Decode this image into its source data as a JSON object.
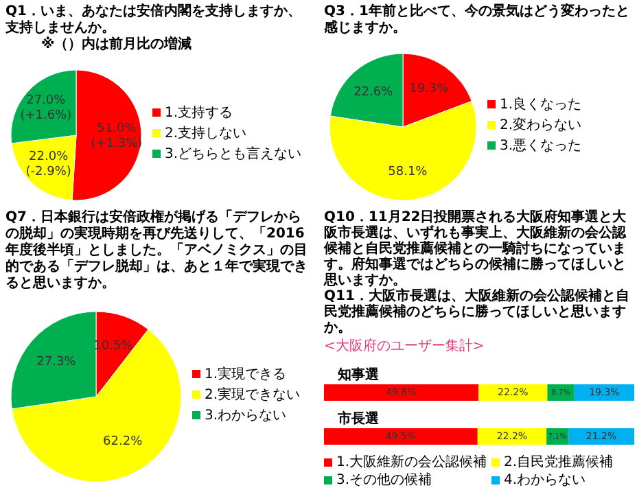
{
  "chart_data": [
    {
      "type": "pie",
      "title": "Q1．いま、あなたは安倍内閣を支持しますか、支持しませんか。",
      "subtitle": "※（）内は前月比の増減",
      "categories": [
        "1.支持する",
        "2.支持しない",
        "3.どちらとも言えない"
      ],
      "values": [
        51.0,
        22.0,
        27.0
      ],
      "colors": [
        "#ff0000",
        "#ffff00",
        "#00b050"
      ],
      "value_labels": [
        "51.0%\n(+1.3%)",
        "22.0%\n(-2.9%)",
        "27.0%\n(+1.6%)"
      ],
      "legend": "right"
    },
    {
      "type": "pie",
      "title": "Q3．1年前と比べて、今の景気はどう変わったと感じますか。",
      "categories": [
        "1.良くなった",
        "2.変わらない",
        "3.悪くなった"
      ],
      "values": [
        19.3,
        58.1,
        22.6
      ],
      "colors": [
        "#ff0000",
        "#ffff00",
        "#00b050"
      ],
      "value_labels": [
        "19.3%",
        "58.1%",
        "22.6%"
      ],
      "legend": "right"
    },
    {
      "type": "pie",
      "title": "Q7．日本銀行は安倍政権が掲げる「デフレからの脱却」の実現時期を再び先送りして、「2016年度後半頃」としました。「アベノミクス」の目的である「デフレ脱却」は、あと１年で実現できると思いますか。",
      "categories": [
        "1.実現できる",
        "2.実現できない",
        "3.わからない"
      ],
      "values": [
        10.5,
        62.2,
        27.3
      ],
      "colors": [
        "#ff0000",
        "#ffff00",
        "#00b050"
      ],
      "value_labels": [
        "10.5%",
        "62.2%",
        "27.3%"
      ],
      "legend": "right"
    },
    {
      "type": "bar",
      "orientation": "horizontal",
      "stacked": true,
      "title": "Q10．11月22日投開票される大阪府知事選と大阪市長選は、いずれも事実上、大阪維新の会公認候補と自民党推薦候補との一騎討ちになっています。府知事選ではどちらの候補に勝ってほしいと思いますか。",
      "subtitle": "Q11．大阪市長選は、大阪維新の会公認候補と自民党推薦候補のどちらに勝ってほしいと思いますか。",
      "annotations": [
        "<大阪府のユーザー集計>"
      ],
      "categories": [
        "知事選",
        "市長選"
      ],
      "legend": "bottom",
      "series": [
        {
          "name": "1.大阪維新の会公認候補",
          "color": "#ff0000",
          "values": [
            49.8,
            49.5
          ],
          "value_labels": [
            "49.8%",
            "49.5%"
          ]
        },
        {
          "name": "2.自民党推薦候補",
          "color": "#ffff00",
          "values": [
            22.2,
            22.2
          ],
          "value_labels": [
            "22.2%",
            "22.2%"
          ]
        },
        {
          "name": "3.その他の候補",
          "color": "#00b050",
          "values": [
            8.7,
            7.1
          ],
          "value_labels": [
            "8.7%",
            "7.1%"
          ]
        },
        {
          "name": "4.わからない",
          "color": "#00b0f0",
          "values": [
            19.3,
            21.2
          ],
          "value_labels": [
            "19.3%",
            "21.2%"
          ]
        }
      ]
    }
  ]
}
